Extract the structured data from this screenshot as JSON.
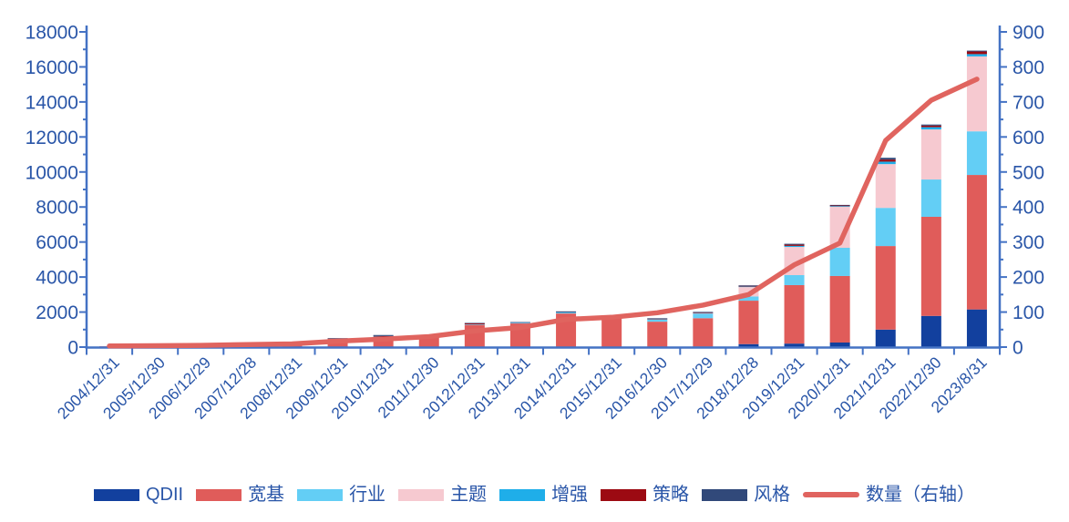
{
  "chart_data": {
    "type": "bar",
    "combo": "stacked-bar-with-line",
    "title": "",
    "xlabel": "",
    "ylabel_left": "",
    "ylabel_right": "",
    "grid": "off",
    "legend_position": "bottom",
    "categories": [
      "2004/12/31",
      "2005/12/30",
      "2006/12/29",
      "2007/12/28",
      "2008/12/31",
      "2009/12/31",
      "2010/12/31",
      "2011/12/30",
      "2012/12/31",
      "2013/12/31",
      "2014/12/31",
      "2015/12/31",
      "2016/12/30",
      "2017/12/29",
      "2018/12/28",
      "2019/12/31",
      "2020/12/31",
      "2021/12/31",
      "2022/12/30",
      "2023/8/31"
    ],
    "series": [
      {
        "name": "QDII",
        "color": "#12409E",
        "values": [
          0,
          0,
          0,
          0,
          0,
          0,
          0,
          0,
          0,
          0,
          0,
          0,
          0,
          30,
          170,
          200,
          260,
          1000,
          1780,
          2150
        ]
      },
      {
        "name": "宽基",
        "color": "#E05C5A",
        "values": [
          45,
          55,
          85,
          125,
          115,
          500,
          580,
          550,
          1270,
          1350,
          1920,
          1670,
          1450,
          1620,
          2480,
          3340,
          3800,
          4770,
          5660,
          7680
        ]
      },
      {
        "name": "行业",
        "color": "#63CEF5",
        "values": [
          0,
          0,
          0,
          0,
          0,
          0,
          20,
          20,
          30,
          40,
          60,
          0,
          150,
          250,
          240,
          570,
          1610,
          2180,
          2130,
          2490
        ]
      },
      {
        "name": "主题",
        "color": "#F6C9D0",
        "values": [
          0,
          0,
          0,
          0,
          0,
          0,
          0,
          0,
          0,
          0,
          0,
          0,
          0,
          20,
          540,
          1610,
          2340,
          2500,
          2860,
          4280
        ]
      },
      {
        "name": "增强",
        "color": "#1FAEE9",
        "values": [
          0,
          0,
          0,
          0,
          0,
          0,
          0,
          0,
          0,
          0,
          0,
          0,
          0,
          20,
          30,
          60,
          40,
          140,
          130,
          130
        ]
      },
      {
        "name": "策略",
        "color": "#9C0A12",
        "values": [
          0,
          0,
          0,
          0,
          0,
          0,
          30,
          20,
          50,
          0,
          0,
          0,
          20,
          30,
          40,
          70,
          40,
          120,
          90,
          150
        ]
      },
      {
        "name": "风格",
        "color": "#31497A",
        "values": [
          0,
          0,
          0,
          0,
          0,
          10,
          60,
          40,
          30,
          40,
          60,
          40,
          30,
          40,
          30,
          50,
          30,
          100,
          60,
          50
        ]
      }
    ],
    "line_series": {
      "name": "数量（右轴）",
      "color": "#E0645F",
      "values": [
        3,
        4,
        5,
        7,
        9,
        17,
        23,
        30,
        46,
        56,
        79,
        85,
        98,
        120,
        150,
        235,
        297,
        590,
        705,
        765
      ]
    },
    "left_axis": {
      "min": 0,
      "max": 18000,
      "step": 2000,
      "minor_step": 1000,
      "tick_labels": [
        "0",
        "2000",
        "4000",
        "6000",
        "8000",
        "10000",
        "12000",
        "14000",
        "16000",
        "18000"
      ]
    },
    "right_axis": {
      "min": 0,
      "max": 900,
      "step": 100,
      "minor_step": 50,
      "tick_labels": [
        "0",
        "100",
        "200",
        "300",
        "400",
        "500",
        "600",
        "700",
        "800",
        "900"
      ]
    }
  },
  "colors": {
    "axis_line": "#4472C4",
    "axis_text": "#2A56A8",
    "background": "#FFFFFF"
  }
}
